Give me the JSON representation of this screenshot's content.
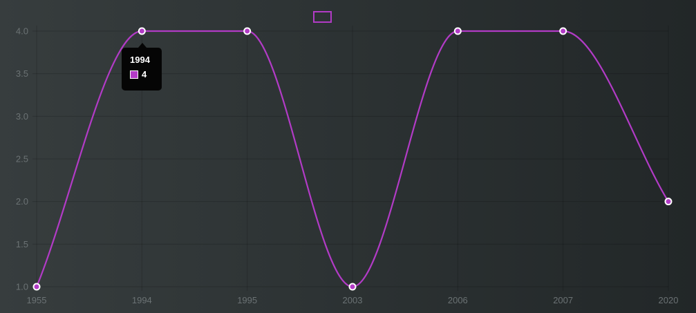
{
  "chart_data": {
    "type": "line",
    "categories": [
      "1955",
      "1994",
      "1995",
      "2003",
      "2006",
      "2007",
      "2020"
    ],
    "series": [
      {
        "name": "",
        "values": [
          1,
          4,
          4,
          1,
          4,
          4,
          2
        ]
      }
    ],
    "ylim": [
      1.0,
      4.0
    ],
    "yticks": [
      "1.0",
      "1.5",
      "2.0",
      "2.5",
      "3.0",
      "3.5",
      "4.0"
    ],
    "grid": true,
    "legend": "top-center",
    "line_color": "#b23bc6",
    "point_fill": "#b23bc6",
    "point_stroke": "#ffffff",
    "curve": "smooth"
  },
  "tooltip": {
    "title": "1994",
    "value": "4",
    "swatch_color": "#b23bc6"
  }
}
